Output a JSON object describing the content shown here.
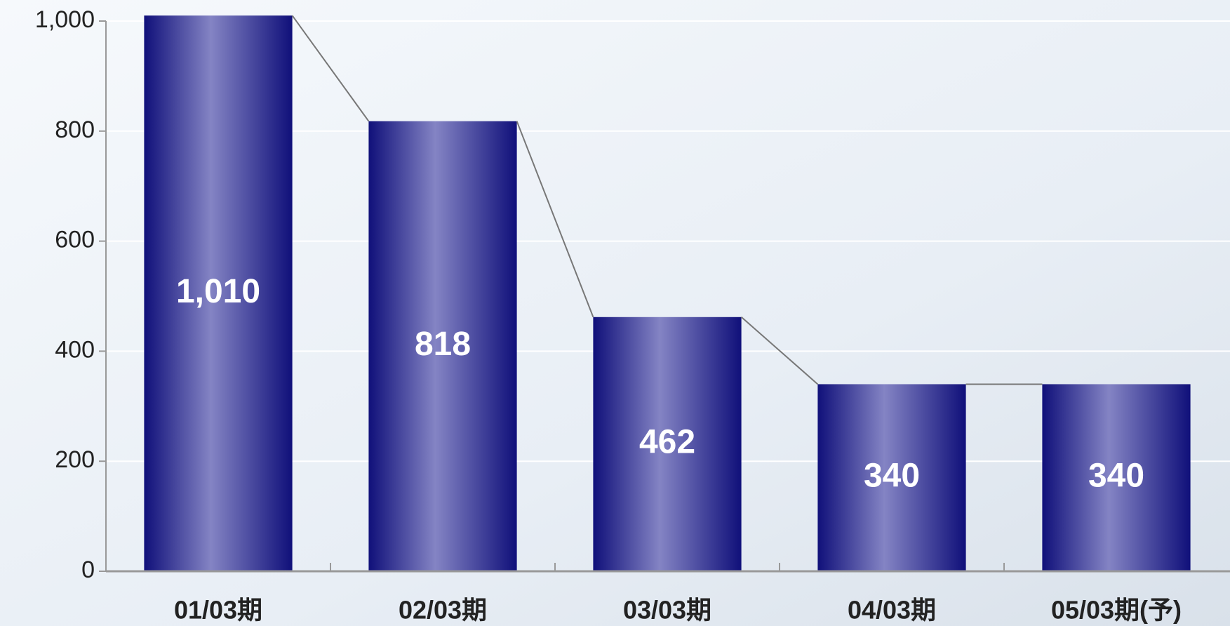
{
  "chart_data": {
    "type": "bar",
    "categories": [
      "01/03期",
      "02/03期",
      "03/03期",
      "04/03期",
      "05/03期(予)"
    ],
    "values": [
      1010,
      818,
      462,
      340,
      340
    ],
    "value_labels": [
      "1,010",
      "818",
      "462",
      "340",
      "340"
    ],
    "color": "#10107a",
    "ylim": [
      0,
      1000
    ],
    "yticks": [
      0,
      200,
      400,
      600,
      800,
      {
        "value": 1000,
        "label": "1,000"
      }
    ],
    "grid": true
  }
}
